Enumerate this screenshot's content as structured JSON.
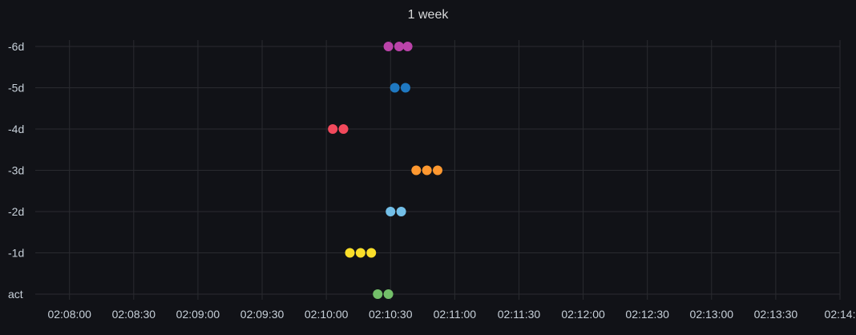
{
  "panel": {
    "title": "1 week"
  },
  "chart_data": {
    "type": "scatter",
    "title": "1 week",
    "xlabel": "",
    "ylabel": "",
    "x_ticks": [
      "02:08:00",
      "02:08:30",
      "02:09:00",
      "02:09:30",
      "02:10:00",
      "02:10:30",
      "02:11:00",
      "02:11:30",
      "02:12:00",
      "02:12:30",
      "02:13:00",
      "02:13:30",
      "02:14:"
    ],
    "xlim": [
      "02:07:44",
      "02:14:00"
    ],
    "categories": [
      "-6d",
      "-5d",
      "-4d",
      "-3d",
      "-2d",
      "-1d",
      "act"
    ],
    "grid": true,
    "legend": "none",
    "series": [
      {
        "category": "-6d",
        "color": "#ba43a9",
        "x": [
          "02:10:29",
          "02:10:34",
          "02:10:38"
        ]
      },
      {
        "category": "-5d",
        "color": "#1f78c1",
        "x": [
          "02:10:32",
          "02:10:37"
        ]
      },
      {
        "category": "-4d",
        "color": "#f2495c",
        "x": [
          "02:10:03",
          "02:10:08"
        ]
      },
      {
        "category": "-3d",
        "color": "#ff9830",
        "x": [
          "02:10:42",
          "02:10:47",
          "02:10:52"
        ]
      },
      {
        "category": "-2d",
        "color": "#73bfe8",
        "x": [
          "02:10:30",
          "02:10:35"
        ]
      },
      {
        "category": "-1d",
        "color": "#fade2a",
        "x": [
          "02:10:11",
          "02:10:16",
          "02:10:21"
        ]
      },
      {
        "category": "act",
        "color": "#73bf69",
        "x": [
          "02:10:24",
          "02:10:29"
        ]
      }
    ]
  }
}
